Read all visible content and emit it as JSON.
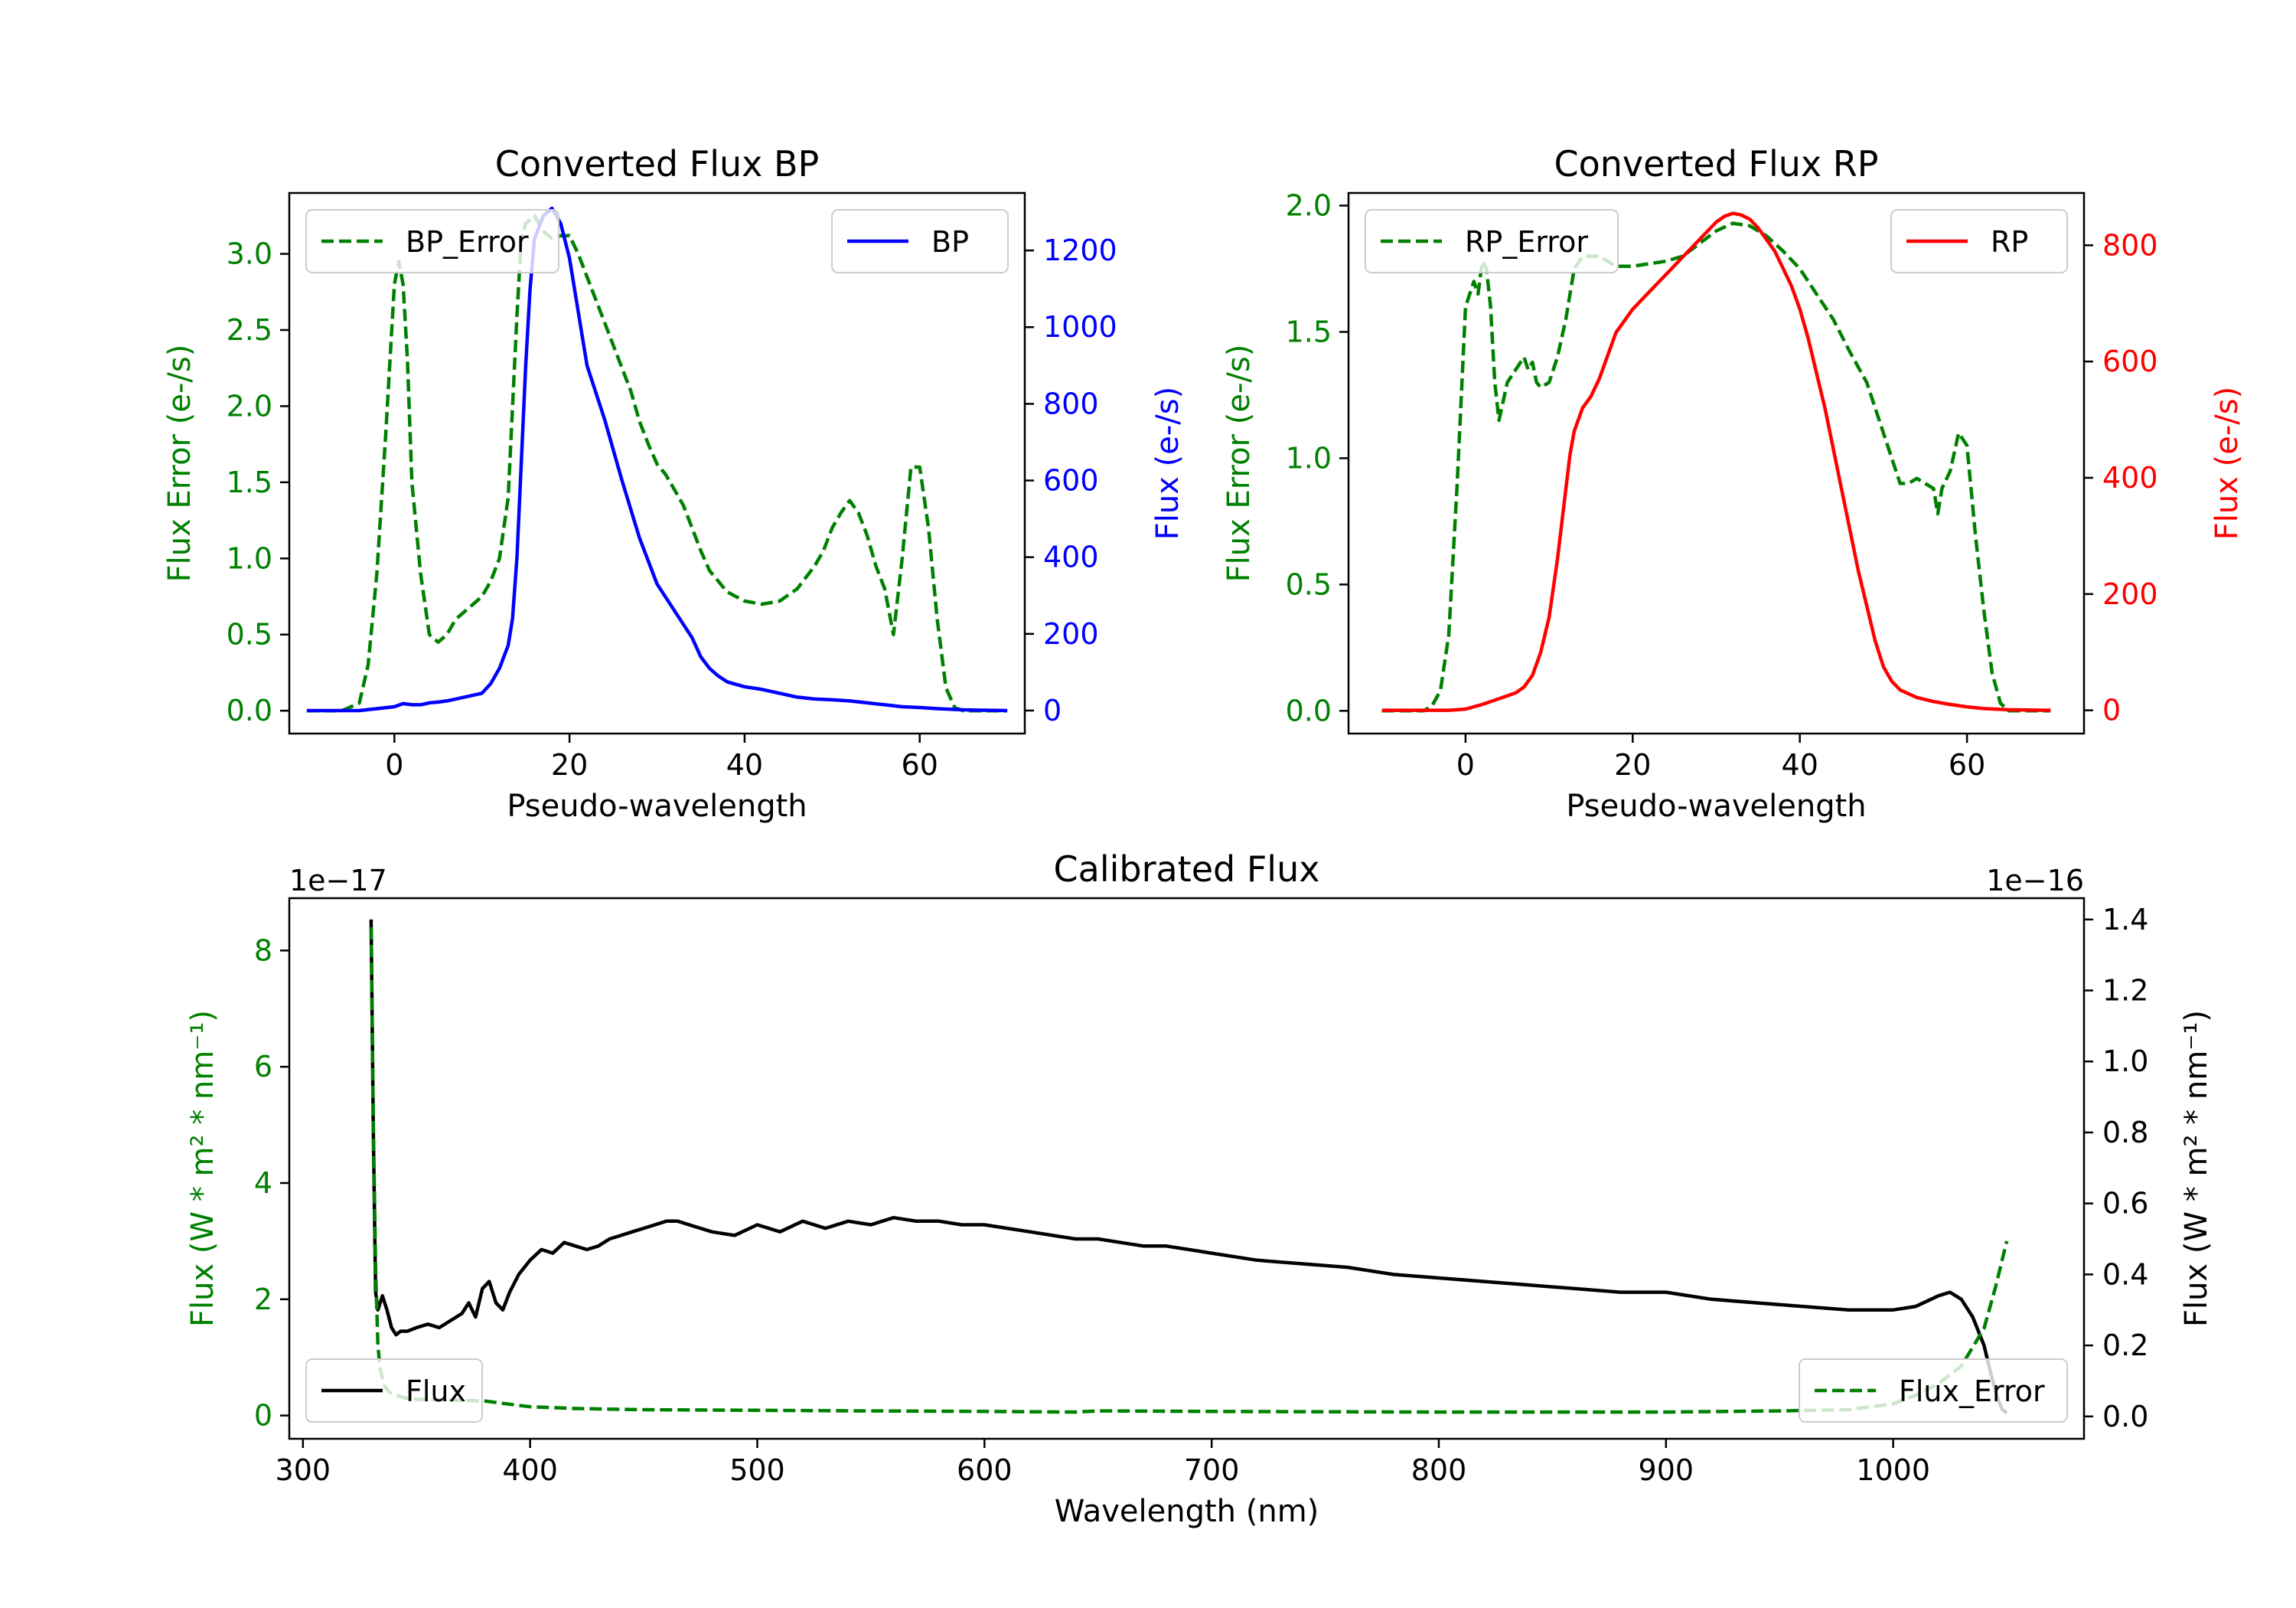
{
  "chart_data": [
    {
      "type": "line",
      "title": "Converted Flux BP",
      "xlabel": "Pseudo-wavelength",
      "ylabel_left": "Flux Error (e-/s)",
      "ylabel_right": "Flux (e-/s)",
      "xlim": [
        -12,
        72
      ],
      "ylim_left": [
        -0.15,
        3.4
      ],
      "ylim_right": [
        -60,
        1350
      ],
      "xticks": [
        0,
        20,
        40,
        60
      ],
      "xtick_labels": [
        "0",
        "20",
        "40",
        "60"
      ],
      "yticks_left": [
        0,
        0.5,
        1.0,
        1.5,
        2.0,
        2.5,
        3.0
      ],
      "ytick_labels_left": [
        "0.0",
        "0.5",
        "1.0",
        "1.5",
        "2.0",
        "2.5",
        "3.0"
      ],
      "yticks_right": [
        0,
        200,
        400,
        600,
        800,
        1000,
        1200
      ],
      "ytick_labels_right": [
        "0",
        "200",
        "400",
        "600",
        "800",
        "1000",
        "1200"
      ],
      "left_axis_color": "#008000",
      "right_axis_color": "#0000ff",
      "legend_left": {
        "label": "BP_Error",
        "placement": "upper-left"
      },
      "legend_right": {
        "label": "BP",
        "placement": "upper-right"
      },
      "series": [
        {
          "name": "BP_Error",
          "axis": "left",
          "color": "#008000",
          "style": "dashed",
          "x": [
            -10,
            -6,
            -4,
            -3,
            -2,
            -1,
            0,
            0.5,
            1,
            1.5,
            2,
            3,
            4,
            5,
            6,
            7,
            8,
            9,
            10,
            11,
            12,
            13,
            14,
            14.5,
            15,
            16,
            17,
            18,
            19,
            20,
            21,
            22,
            23,
            24,
            25,
            26,
            27,
            28,
            29,
            30,
            31,
            32,
            33,
            34,
            35,
            36,
            37,
            38,
            40,
            42,
            44,
            46,
            48,
            49,
            50,
            51,
            52,
            53,
            54,
            55,
            56,
            56.5,
            57,
            58,
            59,
            60,
            61,
            62,
            63,
            64,
            65,
            66,
            70
          ],
          "y": [
            0,
            0,
            0.05,
            0.3,
            0.9,
            1.8,
            2.8,
            2.95,
            2.8,
            2.3,
            1.5,
            0.9,
            0.5,
            0.45,
            0.5,
            0.6,
            0.65,
            0.7,
            0.75,
            0.85,
            1.0,
            1.4,
            2.6,
            3.1,
            3.2,
            3.25,
            3.15,
            3.1,
            3.12,
            3.12,
            3.0,
            2.85,
            2.7,
            2.55,
            2.4,
            2.25,
            2.1,
            1.9,
            1.75,
            1.62,
            1.55,
            1.45,
            1.35,
            1.2,
            1.05,
            0.92,
            0.85,
            0.78,
            0.72,
            0.7,
            0.72,
            0.8,
            0.95,
            1.05,
            1.2,
            1.3,
            1.38,
            1.3,
            1.15,
            0.95,
            0.8,
            0.65,
            0.5,
            1.0,
            1.6,
            1.6,
            1.2,
            0.6,
            0.15,
            0.02,
            0,
            0,
            0
          ]
        },
        {
          "name": "BP",
          "axis": "right",
          "color": "#0000ff",
          "style": "solid",
          "x": [
            -10,
            -4,
            -2,
            0,
            1,
            2,
            3,
            4,
            5,
            6,
            7,
            8,
            9,
            10,
            11,
            12,
            13,
            13.5,
            14,
            14.5,
            15,
            15.5,
            16,
            17,
            18,
            19,
            20,
            22,
            24,
            26,
            28,
            30,
            32,
            34,
            35,
            36,
            37,
            38,
            40,
            42,
            44,
            46,
            48,
            50,
            52,
            54,
            56,
            58,
            60,
            62,
            65,
            70
          ],
          "y": [
            0,
            0,
            5,
            10,
            18,
            15,
            15,
            20,
            22,
            25,
            30,
            35,
            40,
            45,
            70,
            110,
            170,
            240,
            400,
            650,
            900,
            1100,
            1230,
            1290,
            1310,
            1270,
            1180,
            900,
            760,
            600,
            450,
            330,
            260,
            190,
            140,
            110,
            90,
            75,
            62,
            55,
            45,
            35,
            30,
            28,
            25,
            20,
            15,
            10,
            8,
            5,
            2,
            0
          ]
        }
      ]
    },
    {
      "type": "line",
      "title": "Converted Flux RP",
      "xlabel": "Pseudo-wavelength",
      "ylabel_left": "Flux Error (e-/s)",
      "ylabel_right": "Flux (e-/s)",
      "xlim": [
        -14,
        74
      ],
      "ylim_left": [
        -0.09,
        2.05
      ],
      "ylim_right": [
        -40,
        890
      ],
      "xticks": [
        0,
        20,
        40,
        60
      ],
      "xtick_labels": [
        "0",
        "20",
        "40",
        "60"
      ],
      "yticks_left": [
        0,
        0.5,
        1.0,
        1.5,
        2.0
      ],
      "ytick_labels_left": [
        "0.0",
        "0.5",
        "1.0",
        "1.5",
        "2.0"
      ],
      "yticks_right": [
        0,
        200,
        400,
        600,
        800
      ],
      "ytick_labels_right": [
        "0",
        "200",
        "400",
        "600",
        "800"
      ],
      "left_axis_color": "#008000",
      "right_axis_color": "#ff0000",
      "legend_left": {
        "label": "RP_Error",
        "placement": "upper-left"
      },
      "legend_right": {
        "label": "RP",
        "placement": "upper-right"
      },
      "series": [
        {
          "name": "RP_Error",
          "axis": "left",
          "color": "#008000",
          "style": "dashed",
          "x": [
            -10,
            -5,
            -4,
            -3,
            -2,
            -1,
            0,
            1,
            1.5,
            2,
            2.5,
            3,
            3.5,
            4,
            5,
            6,
            7,
            7.5,
            8,
            8.5,
            9,
            10,
            11,
            12,
            13,
            14,
            15,
            16,
            17,
            18,
            20,
            22,
            24,
            26,
            28,
            30,
            32,
            34,
            36,
            38,
            40,
            42,
            44,
            46,
            48,
            49,
            50,
            51,
            52,
            53,
            54,
            55,
            56,
            56.5,
            57,
            58,
            59,
            60,
            61,
            62,
            63,
            64,
            65,
            70
          ],
          "y": [
            0,
            0,
            0.02,
            0.08,
            0.3,
            0.9,
            1.6,
            1.7,
            1.65,
            1.78,
            1.75,
            1.6,
            1.3,
            1.15,
            1.3,
            1.35,
            1.4,
            1.35,
            1.38,
            1.3,
            1.28,
            1.3,
            1.4,
            1.55,
            1.75,
            1.8,
            1.8,
            1.8,
            1.78,
            1.76,
            1.76,
            1.77,
            1.78,
            1.8,
            1.85,
            1.9,
            1.93,
            1.92,
            1.88,
            1.82,
            1.75,
            1.65,
            1.55,
            1.42,
            1.3,
            1.2,
            1.1,
            1.0,
            0.9,
            0.9,
            0.92,
            0.9,
            0.88,
            0.78,
            0.88,
            0.95,
            1.1,
            1.05,
            0.7,
            0.4,
            0.15,
            0.03,
            0,
            0
          ]
        },
        {
          "name": "RP",
          "axis": "right",
          "color": "#ff0000",
          "style": "solid",
          "x": [
            -10,
            -4,
            -2,
            0,
            2,
            4,
            6,
            7,
            8,
            9,
            10,
            11,
            12,
            12.5,
            13,
            13.5,
            14,
            15,
            16,
            17,
            18,
            20,
            22,
            24,
            26,
            28,
            30,
            31,
            32,
            33,
            34,
            35,
            36,
            37,
            38,
            39,
            40,
            41,
            42,
            43,
            44,
            45,
            46,
            47,
            48,
            49,
            50,
            51,
            52,
            54,
            56,
            58,
            60,
            62,
            65,
            70
          ],
          "y": [
            0,
            0,
            0,
            2,
            10,
            20,
            30,
            40,
            60,
            100,
            160,
            260,
            380,
            440,
            480,
            500,
            520,
            540,
            570,
            610,
            650,
            690,
            720,
            750,
            780,
            810,
            840,
            850,
            855,
            852,
            845,
            830,
            810,
            790,
            760,
            730,
            690,
            640,
            580,
            520,
            450,
            380,
            310,
            240,
            180,
            120,
            75,
            50,
            35,
            22,
            15,
            10,
            6,
            3,
            1,
            0
          ]
        }
      ]
    },
    {
      "type": "line",
      "title": "Calibrated Flux",
      "xlabel": "Wavelength (nm)",
      "ylabel_left": "Flux (W * m² * nm⁻¹)",
      "ylabel_right": "Flux (W * m² * nm⁻¹)",
      "offset_left": "1e−17",
      "offset_right": "1e−16",
      "xlim": [
        294,
        1084
      ],
      "ylim_left": [
        -0.4,
        8.9
      ],
      "ylim_right": [
        -0.063,
        1.46
      ],
      "xticks": [
        300,
        400,
        500,
        600,
        700,
        800,
        900,
        1000
      ],
      "xtick_labels": [
        "300",
        "400",
        "500",
        "600",
        "700",
        "800",
        "900",
        "1000"
      ],
      "yticks_left": [
        0,
        2,
        4,
        6,
        8
      ],
      "ytick_labels_left": [
        "0",
        "2",
        "4",
        "6",
        "8"
      ],
      "yticks_right": [
        0.0,
        0.2,
        0.4,
        0.6,
        0.8,
        1.0,
        1.2,
        1.4
      ],
      "ytick_labels_right": [
        "0.0",
        "0.2",
        "0.4",
        "0.6",
        "0.8",
        "1.0",
        "1.2",
        "1.4"
      ],
      "left_axis_color": "#008000",
      "right_axis_color": "#000000",
      "legend_left": {
        "label": "Flux",
        "placement": "lower-left"
      },
      "legend_right": {
        "label": "Flux_Error",
        "placement": "lower-right"
      },
      "series": [
        {
          "name": "Flux",
          "axis": "right",
          "color": "#000000",
          "style": "solid",
          "x": [
            330,
            331,
            332,
            333,
            335,
            337,
            339,
            341,
            343,
            346,
            350,
            355,
            360,
            365,
            370,
            373,
            376,
            379,
            382,
            385,
            388,
            391,
            395,
            400,
            405,
            410,
            415,
            420,
            425,
            430,
            435,
            440,
            445,
            450,
            455,
            460,
            465,
            470,
            480,
            490,
            500,
            510,
            520,
            530,
            540,
            550,
            560,
            570,
            580,
            590,
            600,
            610,
            620,
            630,
            640,
            650,
            660,
            670,
            680,
            690,
            700,
            720,
            740,
            760,
            780,
            800,
            820,
            840,
            860,
            880,
            900,
            920,
            940,
            960,
            980,
            1000,
            1010,
            1020,
            1025,
            1030,
            1035,
            1040,
            1043,
            1046,
            1048,
            1050
          ],
          "y": [
            1.4,
            0.8,
            0.35,
            0.3,
            0.34,
            0.3,
            0.25,
            0.23,
            0.24,
            0.24,
            0.25,
            0.26,
            0.25,
            0.27,
            0.29,
            0.32,
            0.28,
            0.36,
            0.38,
            0.32,
            0.3,
            0.35,
            0.4,
            0.44,
            0.47,
            0.46,
            0.49,
            0.48,
            0.47,
            0.48,
            0.5,
            0.51,
            0.52,
            0.53,
            0.54,
            0.55,
            0.55,
            0.54,
            0.52,
            0.51,
            0.54,
            0.52,
            0.55,
            0.53,
            0.55,
            0.54,
            0.56,
            0.55,
            0.55,
            0.54,
            0.54,
            0.53,
            0.52,
            0.51,
            0.5,
            0.5,
            0.49,
            0.48,
            0.48,
            0.47,
            0.46,
            0.44,
            0.43,
            0.42,
            0.4,
            0.39,
            0.38,
            0.37,
            0.36,
            0.35,
            0.35,
            0.33,
            0.32,
            0.31,
            0.3,
            0.3,
            0.31,
            0.34,
            0.35,
            0.33,
            0.28,
            0.2,
            0.12,
            0.05,
            0.02,
            0.01
          ]
        },
        {
          "name": "Flux_Error",
          "axis": "left",
          "color": "#008000",
          "style": "dashed",
          "x": [
            330,
            331,
            332,
            333,
            334,
            336,
            338,
            341,
            345,
            350,
            360,
            370,
            380,
            390,
            400,
            420,
            450,
            500,
            550,
            600,
            640,
            650,
            700,
            800,
            900,
            950,
            980,
            1000,
            1010,
            1020,
            1030,
            1040,
            1045,
            1050
          ],
          "y": [
            8.4,
            5.0,
            2.5,
            1.2,
            0.8,
            0.5,
            0.4,
            0.35,
            0.3,
            0.28,
            0.27,
            0.26,
            0.25,
            0.2,
            0.15,
            0.12,
            0.1,
            0.09,
            0.08,
            0.07,
            0.06,
            0.08,
            0.07,
            0.06,
            0.06,
            0.08,
            0.1,
            0.2,
            0.35,
            0.55,
            0.85,
            1.5,
            2.2,
            3.0
          ]
        }
      ]
    }
  ]
}
